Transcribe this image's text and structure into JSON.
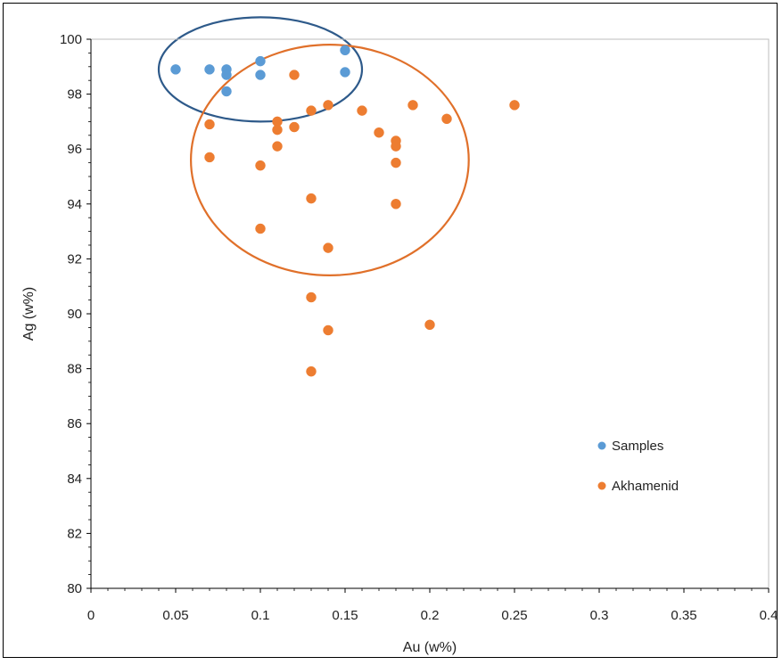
{
  "chart_data": {
    "type": "scatter",
    "title": "",
    "xlabel": "Au (w%)",
    "ylabel": "Ag (w%)",
    "xlim": [
      0,
      0.4
    ],
    "ylim": [
      80,
      100
    ],
    "x_ticks": [
      0,
      0.05,
      0.1,
      0.15,
      0.2,
      0.25,
      0.3,
      0.35,
      0.4
    ],
    "x_tick_labels": [
      "0",
      "0.05",
      "0.1",
      "0.15",
      "0.2",
      "0.25",
      "0.3",
      "0.35",
      "0.4"
    ],
    "y_ticks": [
      80,
      82,
      84,
      86,
      88,
      90,
      92,
      94,
      96,
      98,
      100
    ],
    "y_tick_labels": [
      "80",
      "82",
      "84",
      "86",
      "88",
      "90",
      "92",
      "94",
      "96",
      "98",
      "100"
    ],
    "grid": false,
    "legend_position": "right",
    "series": [
      {
        "name": "Samples",
        "color": "#5b9bd5",
        "points": [
          [
            0.05,
            98.9
          ],
          [
            0.07,
            98.9
          ],
          [
            0.08,
            98.9
          ],
          [
            0.08,
            98.7
          ],
          [
            0.08,
            98.1
          ],
          [
            0.1,
            99.2
          ],
          [
            0.1,
            98.7
          ],
          [
            0.15,
            99.6
          ],
          [
            0.15,
            98.8
          ]
        ]
      },
      {
        "name": "Akhamenid",
        "color": "#ed7d31",
        "points": [
          [
            0.07,
            96.9
          ],
          [
            0.07,
            95.7
          ],
          [
            0.1,
            95.4
          ],
          [
            0.1,
            93.1
          ],
          [
            0.11,
            97.0
          ],
          [
            0.11,
            96.7
          ],
          [
            0.11,
            96.1
          ],
          [
            0.12,
            98.7
          ],
          [
            0.12,
            96.8
          ],
          [
            0.13,
            97.4
          ],
          [
            0.13,
            94.2
          ],
          [
            0.13,
            90.6
          ],
          [
            0.13,
            87.9
          ],
          [
            0.14,
            97.6
          ],
          [
            0.14,
            92.4
          ],
          [
            0.14,
            89.4
          ],
          [
            0.16,
            97.4
          ],
          [
            0.17,
            96.6
          ],
          [
            0.18,
            96.3
          ],
          [
            0.18,
            96.1
          ],
          [
            0.18,
            95.5
          ],
          [
            0.18,
            94.0
          ],
          [
            0.19,
            97.6
          ],
          [
            0.2,
            89.6
          ],
          [
            0.21,
            97.1
          ],
          [
            0.25,
            97.6
          ]
        ]
      }
    ],
    "annotations": [
      {
        "type": "ellipse",
        "series": "Samples",
        "color": "#2e5a8a",
        "center": [
          0.1,
          98.9
        ],
        "radius": [
          0.06,
          1.9
        ]
      },
      {
        "type": "ellipse",
        "series": "Akhamenid",
        "color": "#e0702a",
        "center": [
          0.141,
          95.6
        ],
        "radius": [
          0.082,
          4.2
        ]
      }
    ]
  }
}
